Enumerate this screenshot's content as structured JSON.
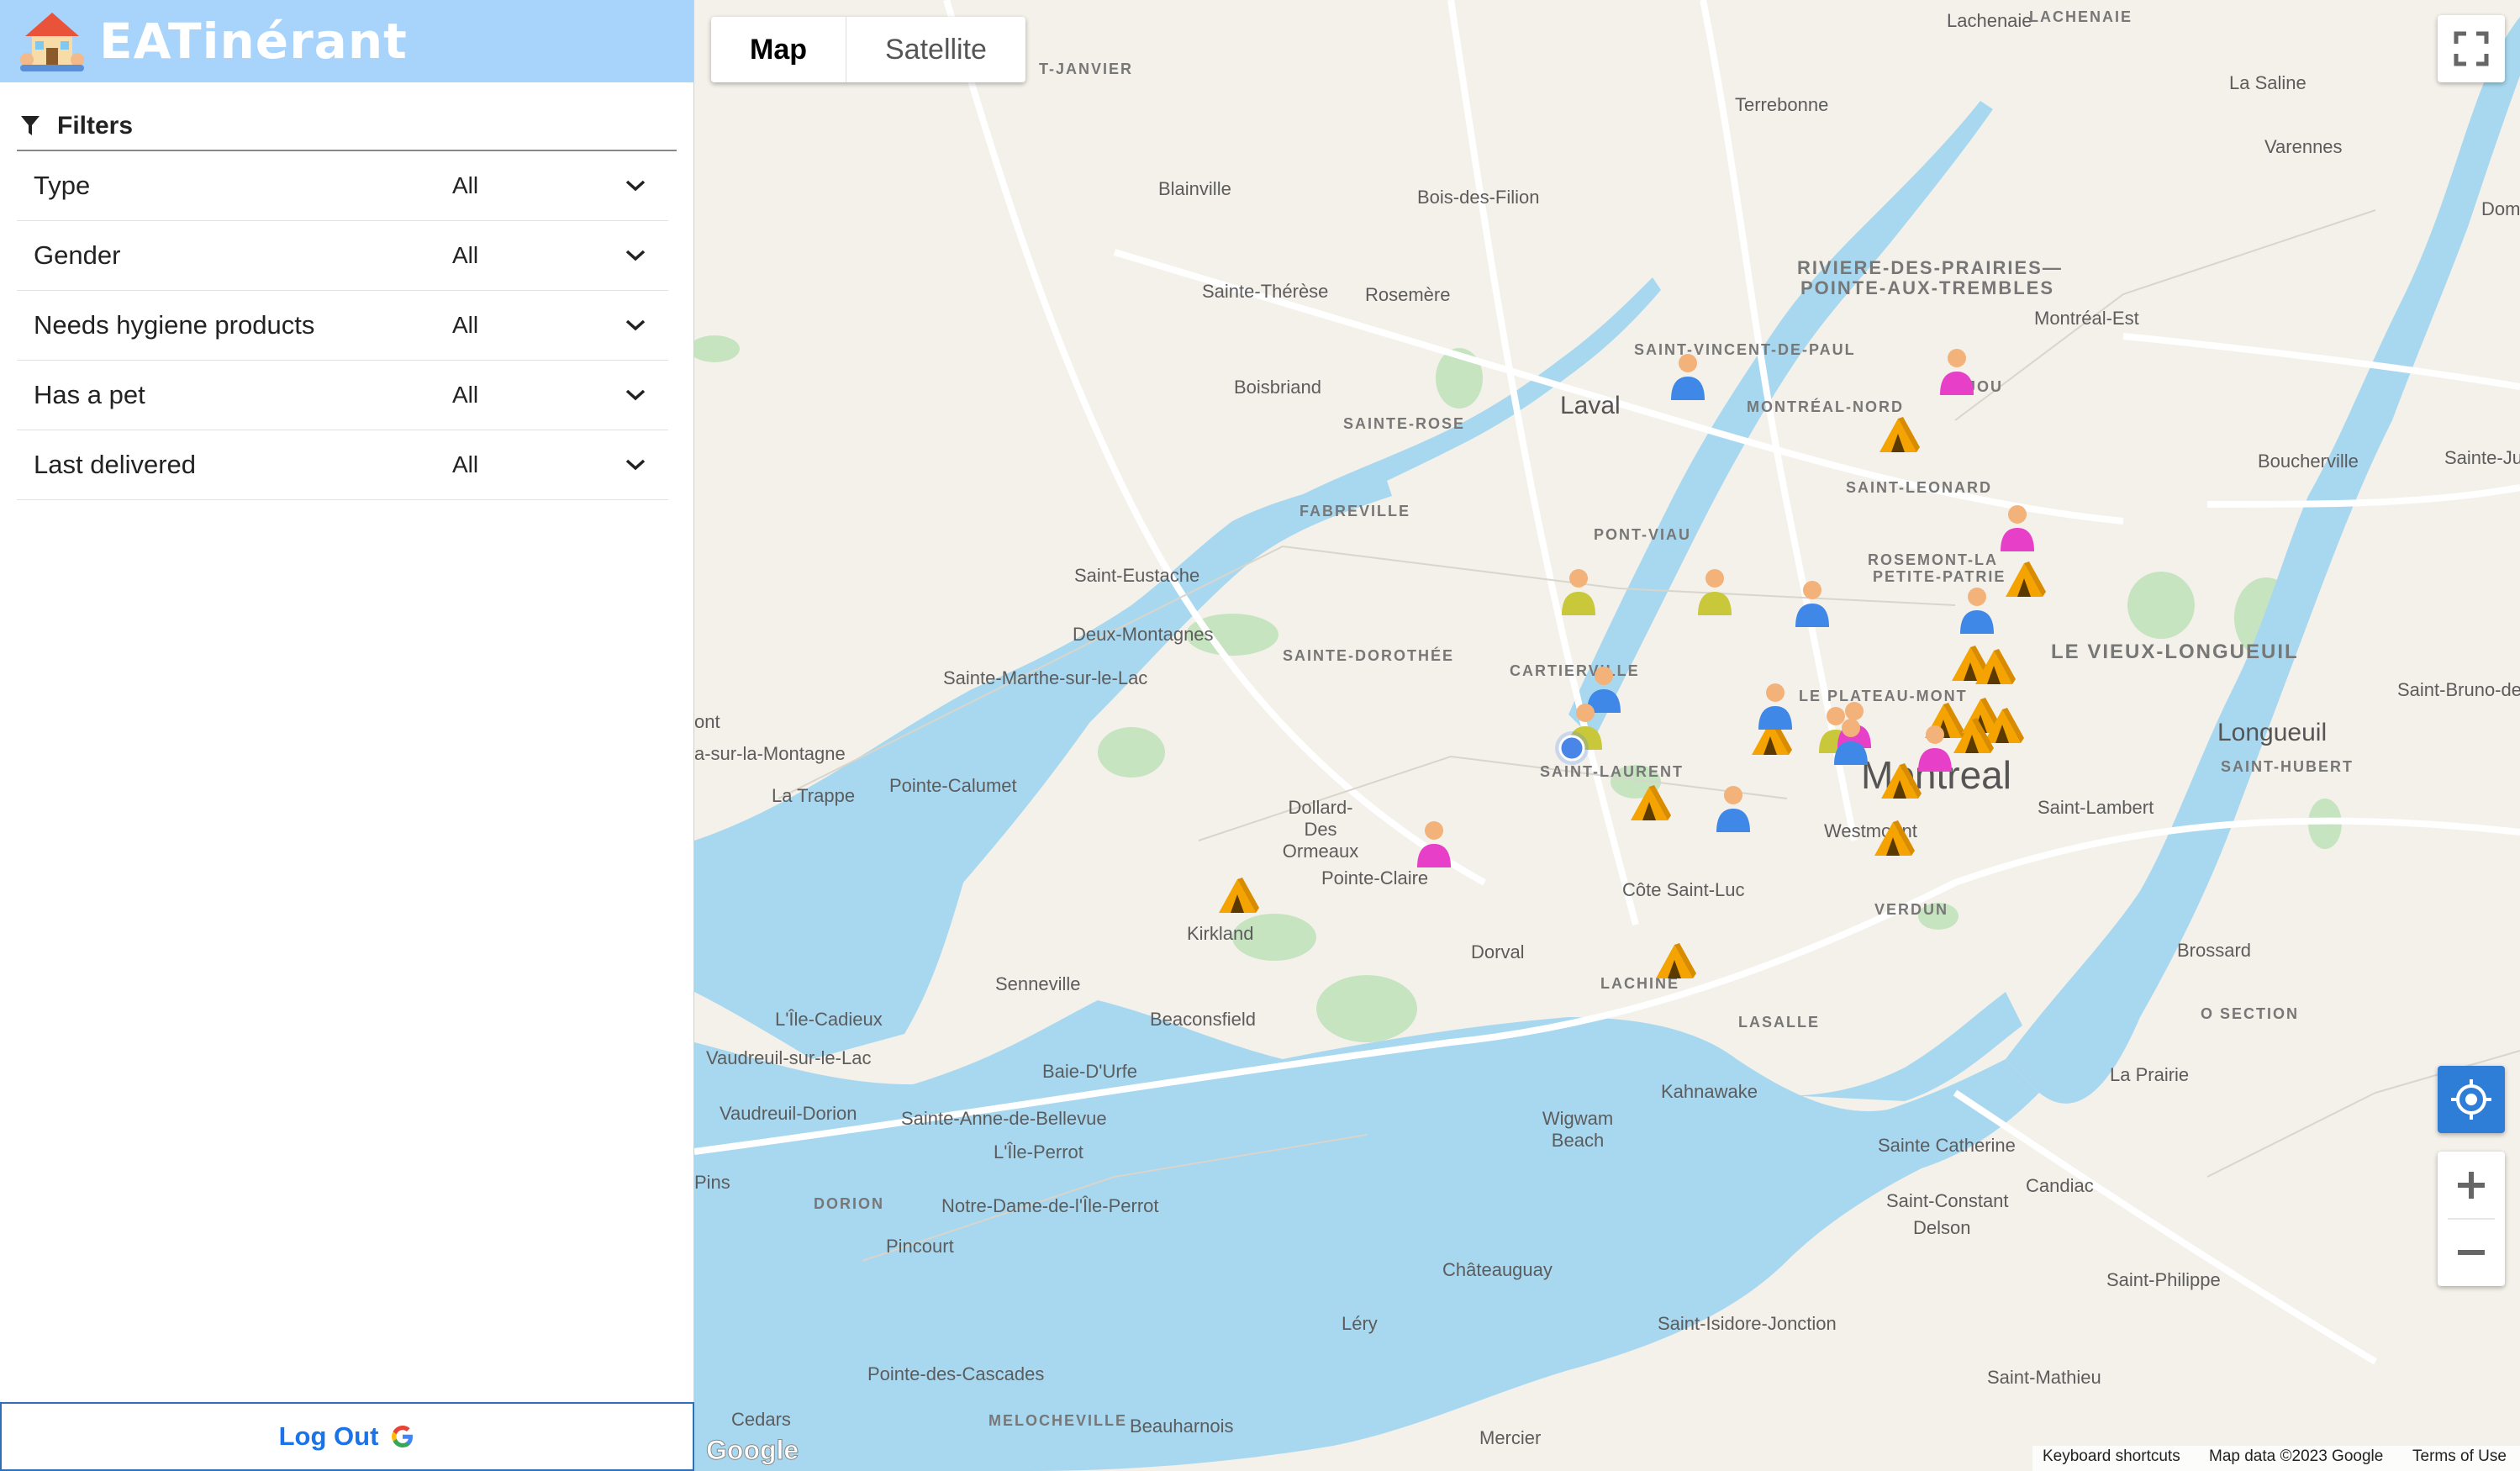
{
  "app": {
    "title": "EATinérant"
  },
  "filters": {
    "title": "Filters",
    "rows": [
      {
        "label": "Type",
        "value": "All"
      },
      {
        "label": "Gender",
        "value": "All"
      },
      {
        "label": "Needs hygiene products",
        "value": "All"
      },
      {
        "label": "Has a pet",
        "value": "All"
      },
      {
        "label": "Last delivered",
        "value": "All"
      }
    ]
  },
  "logout": {
    "label": "Log Out"
  },
  "map": {
    "tabs": [
      "Map",
      "Satellite"
    ],
    "active_tab": "Map",
    "places": [
      "Laval",
      "Montreal",
      "Longueuil",
      "Terrebonne",
      "Blainville",
      "Bois-des-Filion",
      "Sainte-Thérèse",
      "Rosemère",
      "Boisbriand",
      "Saint-Eustache",
      "Deux-Montagnes",
      "Sainte-Marthe-sur-le-Lac",
      "Pointe-Calumet",
      "La Trappe",
      "Kirkland",
      "Pointe-Claire",
      "Dollard-Des Ormeaux",
      "Dorval",
      "Côte Saint-Luc",
      "Westmount",
      "Beaconsfield",
      "Senneville",
      "L'Île-Cadieux",
      "Vaudreuil-sur-le-Lac",
      "Vaudreuil-Dorion",
      "Baie-D'Urfe",
      "Sainte-Anne-de-Bellevue",
      "L'Île-Perrot",
      "Notre-Dame-de-l'Île-Perrot",
      "Pincourt",
      "Pointe-des-Cascades",
      "Cedars",
      "Beauharnois",
      "Mercier",
      "Léry",
      "Châteauguay",
      "Saint-Isidore-Jonction",
      "Kahnawake",
      "Wigwam Beach",
      "Sainte Catherine",
      "Saint-Constant",
      "Delson",
      "Candiac",
      "La Prairie",
      "Brossard",
      "Saint-Lambert",
      "Saint-Philippe",
      "Saint-Mathieu",
      "Montréal-Est",
      "Boucherville",
      "Varennes",
      "La Saline",
      "Lachenaie",
      "Sainte-Julie",
      "Saint-Bruno-de-Montarville",
      "ont",
      "a-sur-la-Montagne",
      "Doma",
      "Pins",
      "T-JANVIER"
    ],
    "districts": [
      "SAINT-VINCENT-DE-PAUL",
      "SAINTE-ROSE",
      "MONTRÉAL-NORD",
      "RIVIERE-DES-PRAIRIES—",
      "POINTE-AUX-TREMBLES",
      "ANJOU",
      "SAINT-LEONARD",
      "FABREVILLE",
      "PONT-VIAU",
      "ROSEMONT-LA",
      "PETITE-PATRIE",
      "SAINTE-DOROTHÉE",
      "CARTIERVILLE",
      "LE PLATEAU-MONT",
      "SAINT-LAURENT",
      "LE VIEUX-LONGUEUIL",
      "SAINT-HUBERT",
      "VERDUN",
      "LACHINE",
      "LASALLE",
      "DORION",
      "MELOCHEVILLE",
      "LACHENAIE",
      "O SECTION"
    ],
    "footer": {
      "shortcuts": "Keyboard shortcuts",
      "mapdata": "Map data ©2023 Google",
      "terms": "Terms of Use",
      "brand": "Google"
    },
    "colors": {
      "water": "#a8d8f0",
      "land": "#f4f1ea",
      "park": "#c6e4c0",
      "tent": "#f5a300",
      "person_blue": "#3f88e8",
      "person_pink": "#e83fc8",
      "person_yellow": "#c8c83a"
    }
  }
}
